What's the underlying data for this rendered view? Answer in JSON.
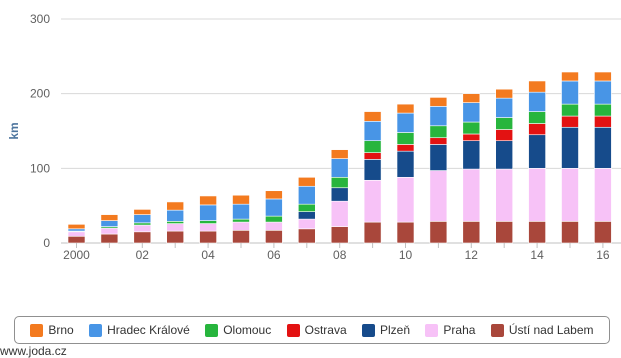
{
  "chart_data": {
    "type": "bar",
    "stacked": true,
    "ylabel": "km",
    "ylim": [
      0,
      300
    ],
    "yticks": [
      0,
      100,
      200,
      300
    ],
    "categories": [
      "2000",
      "2001",
      "2002",
      "2003",
      "2004",
      "2005",
      "2006",
      "2007",
      "2008",
      "2009",
      "2010",
      "2011",
      "2012",
      "2013",
      "2014",
      "2015",
      "2016"
    ],
    "xtick_labels": [
      "2000",
      "",
      "02",
      "",
      "04",
      "",
      "06",
      "",
      "08",
      "",
      "10",
      "",
      "12",
      "",
      "14",
      "",
      "16"
    ],
    "grid": true,
    "legend_position": "bottom",
    "series": [
      {
        "name": "Ústí nad Labem",
        "color": "#a9473b",
        "values": [
          9,
          12,
          15,
          16,
          16,
          17,
          17,
          19,
          22,
          28,
          28,
          29,
          29,
          29,
          29,
          29,
          29
        ]
      },
      {
        "name": "Praha",
        "color": "#f7c2f7",
        "values": [
          6,
          8,
          9,
          10,
          10,
          11,
          11,
          13,
          34,
          56,
          60,
          68,
          70,
          70,
          71,
          71,
          71
        ]
      },
      {
        "name": "Plzeň",
        "color": "#164b8b",
        "values": [
          0,
          0,
          0,
          0,
          0,
          0,
          0,
          10,
          18,
          28,
          35,
          35,
          38,
          38,
          45,
          55,
          55
        ]
      },
      {
        "name": "Ostrava",
        "color": "#e31212",
        "values": [
          0,
          0,
          0,
          0,
          0,
          0,
          0,
          0,
          0,
          9,
          9,
          9,
          9,
          15,
          15,
          15,
          15
        ]
      },
      {
        "name": "Olomouc",
        "color": "#27b53d",
        "values": [
          1,
          2,
          3,
          3,
          4,
          4,
          8,
          10,
          14,
          16,
          16,
          16,
          16,
          16,
          16,
          16,
          16
        ]
      },
      {
        "name": "Hradec Králové",
        "color": "#4895e6",
        "values": [
          3,
          8,
          11,
          15,
          21,
          20,
          23,
          24,
          25,
          26,
          26,
          26,
          26,
          26,
          26,
          31,
          31
        ]
      },
      {
        "name": "Brno",
        "color": "#f37a1f",
        "values": [
          6,
          8,
          7,
          11,
          12,
          12,
          11,
          12,
          12,
          13,
          12,
          12,
          12,
          12,
          15,
          12,
          12
        ]
      }
    ]
  },
  "legend_order": [
    "Brno",
    "Hradec Králové",
    "Olomouc",
    "Ostrava",
    "Plzeň",
    "Praha",
    "Ústí nad Labem"
  ],
  "credit": "www.joda.cz"
}
